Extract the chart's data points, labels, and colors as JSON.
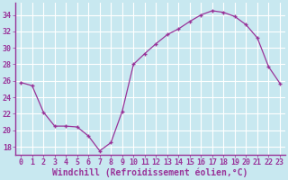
{
  "x": [
    0,
    1,
    2,
    3,
    4,
    5,
    6,
    7,
    8,
    9,
    10,
    11,
    12,
    13,
    14,
    15,
    16,
    17,
    18,
    19,
    20,
    21,
    22,
    23
  ],
  "y": [
    25.8,
    25.4,
    22.2,
    20.5,
    20.5,
    20.4,
    19.3,
    17.5,
    18.5,
    22.3,
    28.0,
    29.3,
    30.5,
    31.6,
    32.3,
    33.2,
    34.0,
    34.5,
    34.3,
    33.8,
    32.8,
    31.2,
    27.7,
    25.7
  ],
  "line_color": "#993399",
  "marker": "+",
  "bg_color": "#c8e8f0",
  "grid_color": "#ffffff",
  "xlabel": "Windchill (Refroidissement éolien,°C)",
  "yticks": [
    18,
    20,
    22,
    24,
    26,
    28,
    30,
    32,
    34
  ],
  "xticks": [
    0,
    1,
    2,
    3,
    4,
    5,
    6,
    7,
    8,
    9,
    10,
    11,
    12,
    13,
    14,
    15,
    16,
    17,
    18,
    19,
    20,
    21,
    22,
    23
  ],
  "xlim": [
    -0.5,
    23.5
  ],
  "ylim": [
    17.0,
    35.5
  ],
  "color": "#993399",
  "tick_fontsize": 6,
  "xlabel_fontsize": 7
}
